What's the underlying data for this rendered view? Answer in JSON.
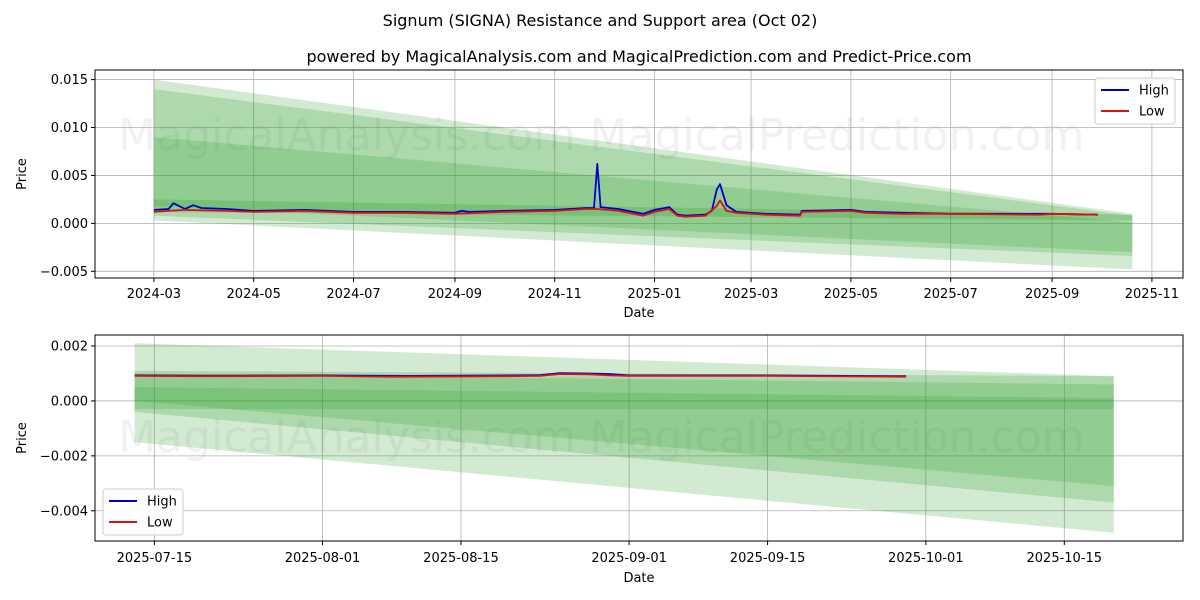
{
  "chart_data": [
    {
      "type": "line",
      "title": "Signum (SIGNA) Resistance and Support area (Oct 02)",
      "subtitle": "powered by MagicalAnalysis.com and MagicalPrediction.com and Predict-Price.com",
      "xlabel": "Date",
      "ylabel": "Price",
      "xlim": [
        "2024-01-25",
        "2025-11-20"
      ],
      "ylim": [
        -0.0057,
        0.016
      ],
      "xticks": [
        "2024-03",
        "2024-05",
        "2024-07",
        "2024-09",
        "2024-11",
        "2025-01",
        "2025-03",
        "2025-05",
        "2025-07",
        "2025-09",
        "2025-11"
      ],
      "yticks": [
        "0.015",
        "0.010",
        "0.005",
        "0.000",
        "−0.005"
      ],
      "yticks_values": [
        0.015,
        0.01,
        0.005,
        0.0,
        -0.005
      ],
      "grid": true,
      "legend": {
        "position": "top-right",
        "entries": [
          "High",
          "Low"
        ]
      },
      "watermarks": [
        "MagicalAnalysis.com",
        "MagicalPrediction.com"
      ],
      "bands": [
        {
          "x": [
            "2024-03-01",
            "2025-10-20"
          ],
          "upper": [
            0.015,
            0.001
          ],
          "lower": [
            0.0003,
            -0.0048
          ],
          "color": "#2ca02c",
          "opacity": 0.22
        },
        {
          "x": [
            "2024-03-01",
            "2025-10-20"
          ],
          "upper": [
            0.014,
            0.0008
          ],
          "lower": [
            0.0008,
            -0.0034
          ],
          "color": "#2ca02c",
          "opacity": 0.22
        },
        {
          "x": [
            "2024-03-01",
            "2025-10-20"
          ],
          "upper": [
            0.009,
            0.0001
          ],
          "lower": [
            0.0018,
            -0.003
          ],
          "color": "#2ca02c",
          "opacity": 0.22
        },
        {
          "x": [
            "2024-03-01",
            "2025-10-20"
          ],
          "upper": [
            0.0025,
            0.0009
          ],
          "lower": [
            0.0012,
            0.0003
          ],
          "color": "#2ca02c",
          "opacity": 0.25
        }
      ],
      "series": [
        {
          "name": "High",
          "color": "#0000cc",
          "x": [
            "2024-03-01",
            "2024-03-10",
            "2024-03-13",
            "2024-03-20",
            "2024-03-25",
            "2024-03-30",
            "2024-04-15",
            "2024-05-01",
            "2024-06-01",
            "2024-07-01",
            "2024-08-01",
            "2024-09-01",
            "2024-09-05",
            "2024-09-10",
            "2024-10-01",
            "2024-11-01",
            "2024-11-20",
            "2024-11-25",
            "2024-11-27",
            "2024-11-29",
            "2024-12-10",
            "2024-12-25",
            "2025-01-01",
            "2025-01-10",
            "2025-01-15",
            "2025-01-20",
            "2025-02-01",
            "2025-02-05",
            "2025-02-08",
            "2025-02-10",
            "2025-02-14",
            "2025-02-20",
            "2025-03-10",
            "2025-03-31",
            "2025-04-01",
            "2025-05-01",
            "2025-05-10",
            "2025-06-01",
            "2025-07-01",
            "2025-08-25",
            "2025-09-01",
            "2025-09-29"
          ],
          "values": [
            0.0014,
            0.0015,
            0.0021,
            0.0015,
            0.0019,
            0.0016,
            0.0015,
            0.0013,
            0.0014,
            0.0012,
            0.0012,
            0.0011,
            0.0013,
            0.0012,
            0.0013,
            0.0014,
            0.0016,
            0.0016,
            0.0062,
            0.0017,
            0.0015,
            0.001,
            0.0014,
            0.0017,
            0.0009,
            0.0008,
            0.0009,
            0.0013,
            0.0035,
            0.0041,
            0.0019,
            0.0012,
            0.001,
            0.0009,
            0.0013,
            0.0014,
            0.0012,
            0.0011,
            0.001,
            0.001,
            0.001,
            0.0009
          ]
        },
        {
          "name": "Low",
          "color": "#dd1111",
          "x": [
            "2024-03-01",
            "2024-03-10",
            "2024-03-20",
            "2024-04-15",
            "2024-05-01",
            "2024-06-01",
            "2024-07-01",
            "2024-08-01",
            "2024-09-01",
            "2024-10-01",
            "2024-11-01",
            "2024-11-20",
            "2024-11-27",
            "2024-12-10",
            "2024-12-25",
            "2025-01-01",
            "2025-01-10",
            "2025-01-15",
            "2025-01-20",
            "2025-02-01",
            "2025-02-08",
            "2025-02-10",
            "2025-02-14",
            "2025-02-20",
            "2025-03-10",
            "2025-03-31",
            "2025-04-01",
            "2025-05-01",
            "2025-05-10",
            "2025-06-01",
            "2025-07-01",
            "2025-08-25",
            "2025-09-01",
            "2025-09-29"
          ],
          "values": [
            0.0012,
            0.0013,
            0.0014,
            0.0013,
            0.0012,
            0.0013,
            0.0011,
            0.0011,
            0.001,
            0.0012,
            0.0013,
            0.0015,
            0.0015,
            0.0013,
            0.0008,
            0.0012,
            0.0015,
            0.0008,
            0.0007,
            0.0008,
            0.0018,
            0.0024,
            0.0013,
            0.0011,
            0.0009,
            0.0008,
            0.0012,
            0.0013,
            0.0011,
            0.001,
            0.001,
            0.0009,
            0.001,
            0.0009
          ]
        }
      ]
    },
    {
      "type": "line",
      "xlabel": "Date",
      "ylabel": "Price",
      "xlim": [
        "2025-07-09",
        "2025-10-27"
      ],
      "ylim": [
        -0.0051,
        0.0024
      ],
      "xticks": [
        "2025-07-15",
        "2025-08-01",
        "2025-08-15",
        "2025-09-01",
        "2025-09-15",
        "2025-10-01",
        "2025-10-15"
      ],
      "yticks": [
        "0.002",
        "0.000",
        "−0.002",
        "−0.004"
      ],
      "yticks_values": [
        0.002,
        0.0,
        -0.002,
        -0.004
      ],
      "grid": true,
      "legend": {
        "position": "bottom-left",
        "entries": [
          "High",
          "Low"
        ]
      },
      "watermarks": [
        "MagicalAnalysis.com",
        "MagicalPrediction.com"
      ],
      "bands": [
        {
          "x": [
            "2025-07-13",
            "2025-10-20"
          ],
          "upper": [
            0.0021,
            0.0009
          ],
          "lower": [
            -0.0015,
            -0.0048
          ],
          "color": "#2ca02c",
          "opacity": 0.22
        },
        {
          "x": [
            "2025-07-13",
            "2025-10-20"
          ],
          "upper": [
            0.0011,
            0.0009
          ],
          "lower": [
            -0.0004,
            -0.0037
          ],
          "color": "#2ca02c",
          "opacity": 0.22
        },
        {
          "x": [
            "2025-07-13",
            "2025-10-20"
          ],
          "upper": [
            0.001,
            0.0006
          ],
          "lower": [
            0.0,
            -0.0031
          ],
          "color": "#2ca02c",
          "opacity": 0.22
        },
        {
          "x": [
            "2025-07-13",
            "2025-10-20"
          ],
          "upper": [
            0.0005,
            0.0001
          ],
          "lower": [
            -0.0003,
            -0.0003
          ],
          "color": "#2ca02c",
          "opacity": 0.22
        }
      ],
      "series": [
        {
          "name": "High",
          "color": "#0000cc",
          "x": [
            "2025-07-13",
            "2025-07-20",
            "2025-08-01",
            "2025-08-10",
            "2025-08-20",
            "2025-08-23",
            "2025-08-25",
            "2025-08-28",
            "2025-08-30",
            "2025-09-01",
            "2025-09-15",
            "2025-09-29"
          ],
          "values": [
            0.00093,
            0.00092,
            0.00093,
            0.00091,
            0.00093,
            0.00094,
            0.00101,
            0.001,
            0.00098,
            0.00093,
            0.00093,
            0.0009
          ]
        },
        {
          "name": "Low",
          "color": "#dd1111",
          "x": [
            "2025-07-13",
            "2025-07-20",
            "2025-08-01",
            "2025-08-08",
            "2025-08-20",
            "2025-08-23",
            "2025-08-25",
            "2025-08-28",
            "2025-08-30",
            "2025-09-01",
            "2025-09-15",
            "2025-09-29"
          ],
          "values": [
            0.00091,
            0.0009,
            0.00091,
            0.00088,
            0.0009,
            0.00091,
            0.00098,
            0.00097,
            0.00093,
            0.00091,
            0.00091,
            0.00088
          ]
        }
      ]
    }
  ]
}
